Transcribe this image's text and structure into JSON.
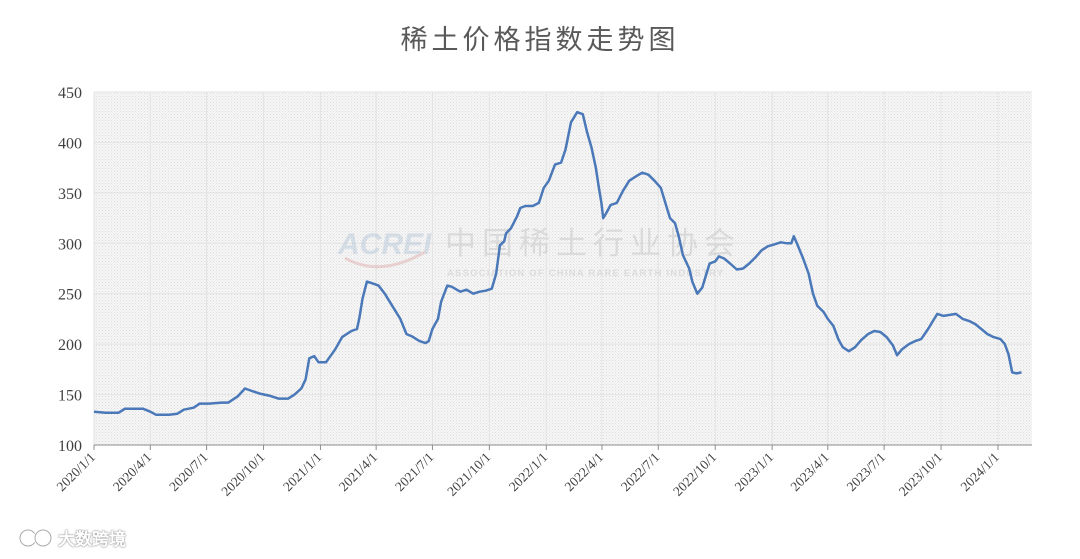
{
  "chart_data": {
    "type": "line",
    "title": "稀土价格指数走势图",
    "ylim": [
      100,
      450
    ],
    "yticks": [
      100,
      150,
      200,
      250,
      300,
      350,
      400,
      450
    ],
    "xlim": [
      "2020-01-01",
      "2024-02-25"
    ],
    "xticks": [
      {
        "date": "2020-01-01",
        "label": "2020/1/1"
      },
      {
        "date": "2020-04-01",
        "label": "2020/4/1"
      },
      {
        "date": "2020-07-01",
        "label": "2020/7/1"
      },
      {
        "date": "2020-10-01",
        "label": "2020/10/1"
      },
      {
        "date": "2021-01-01",
        "label": "2021/1/1"
      },
      {
        "date": "2021-04-01",
        "label": "2021/4/1"
      },
      {
        "date": "2021-07-01",
        "label": "2021/7/1"
      },
      {
        "date": "2021-10-01",
        "label": "2021/10/1"
      },
      {
        "date": "2022-01-01",
        "label": "2022/1/1"
      },
      {
        "date": "2022-04-01",
        "label": "2022/4/1"
      },
      {
        "date": "2022-07-01",
        "label": "2022/7/1"
      },
      {
        "date": "2022-10-01",
        "label": "2022/10/1"
      },
      {
        "date": "2023-01-01",
        "label": "2023/1/1"
      },
      {
        "date": "2023-04-01",
        "label": "2023/4/1"
      },
      {
        "date": "2023-07-01",
        "label": "2023/7/1"
      },
      {
        "date": "2023-10-01",
        "label": "2023/10/1"
      },
      {
        "date": "2024-01-01",
        "label": "2024/1/1"
      }
    ],
    "grid": true,
    "line_color": "#4a78b8",
    "series": [
      {
        "points": [
          [
            "2020-01-01",
            133
          ],
          [
            "2020-01-20",
            132
          ],
          [
            "2020-02-10",
            132
          ],
          [
            "2020-02-20",
            136
          ],
          [
            "2020-03-05",
            136
          ],
          [
            "2020-03-20",
            136
          ],
          [
            "2020-04-01",
            133
          ],
          [
            "2020-04-10",
            130
          ],
          [
            "2020-05-01",
            130
          ],
          [
            "2020-05-15",
            131
          ],
          [
            "2020-05-25",
            135
          ],
          [
            "2020-06-10",
            137
          ],
          [
            "2020-06-20",
            141
          ],
          [
            "2020-07-05",
            141
          ],
          [
            "2020-07-25",
            142
          ],
          [
            "2020-08-05",
            142
          ],
          [
            "2020-08-20",
            148
          ],
          [
            "2020-09-01",
            156
          ],
          [
            "2020-09-10",
            154
          ],
          [
            "2020-09-25",
            151
          ],
          [
            "2020-10-10",
            149
          ],
          [
            "2020-10-25",
            146
          ],
          [
            "2020-11-10",
            146
          ],
          [
            "2020-11-20",
            150
          ],
          [
            "2020-12-01",
            156
          ],
          [
            "2020-12-08",
            165
          ],
          [
            "2020-12-14",
            186
          ],
          [
            "2020-12-22",
            188
          ],
          [
            "2020-12-29",
            182
          ],
          [
            "2021-01-10",
            182
          ],
          [
            "2021-01-25",
            195
          ],
          [
            "2021-02-05",
            207
          ],
          [
            "2021-02-20",
            213
          ],
          [
            "2021-03-01",
            215
          ],
          [
            "2021-03-05",
            226
          ],
          [
            "2021-03-10",
            245
          ],
          [
            "2021-03-17",
            262
          ],
          [
            "2021-03-27",
            260
          ],
          [
            "2021-04-05",
            258
          ],
          [
            "2021-04-15",
            250
          ],
          [
            "2021-04-25",
            240
          ],
          [
            "2021-05-10",
            225
          ],
          [
            "2021-05-20",
            210
          ],
          [
            "2021-05-28",
            208
          ],
          [
            "2021-06-10",
            203
          ],
          [
            "2021-06-20",
            201
          ],
          [
            "2021-06-25",
            203
          ],
          [
            "2021-07-01",
            215
          ],
          [
            "2021-07-10",
            225
          ],
          [
            "2021-07-15",
            242
          ],
          [
            "2021-07-25",
            258
          ],
          [
            "2021-08-01",
            257
          ],
          [
            "2021-08-15",
            252
          ],
          [
            "2021-08-25",
            254
          ],
          [
            "2021-09-05",
            250
          ],
          [
            "2021-09-15",
            252
          ],
          [
            "2021-09-25",
            253
          ],
          [
            "2021-10-05",
            255
          ],
          [
            "2021-10-12",
            270
          ],
          [
            "2021-10-18",
            298
          ],
          [
            "2021-10-25",
            302
          ],
          [
            "2021-10-28",
            310
          ],
          [
            "2021-11-05",
            315
          ],
          [
            "2021-11-15",
            327
          ],
          [
            "2021-11-20",
            335
          ],
          [
            "2021-11-28",
            337
          ],
          [
            "2021-12-10",
            337
          ],
          [
            "2021-12-20",
            340
          ],
          [
            "2021-12-28",
            355
          ],
          [
            "2022-01-05",
            362
          ],
          [
            "2022-01-15",
            378
          ],
          [
            "2022-01-25",
            380
          ],
          [
            "2022-02-01",
            393
          ],
          [
            "2022-02-10",
            420
          ],
          [
            "2022-02-20",
            430
          ],
          [
            "2022-03-01",
            428
          ],
          [
            "2022-03-08",
            410
          ],
          [
            "2022-03-15",
            395
          ],
          [
            "2022-03-22",
            375
          ],
          [
            "2022-03-27",
            355
          ],
          [
            "2022-03-31",
            340
          ],
          [
            "2022-04-03",
            325
          ],
          [
            "2022-04-08",
            330
          ],
          [
            "2022-04-15",
            338
          ],
          [
            "2022-04-25",
            340
          ],
          [
            "2022-05-05",
            352
          ],
          [
            "2022-05-15",
            362
          ],
          [
            "2022-05-25",
            366
          ],
          [
            "2022-06-05",
            370
          ],
          [
            "2022-06-15",
            368
          ],
          [
            "2022-06-25",
            362
          ],
          [
            "2022-07-05",
            355
          ],
          [
            "2022-07-15",
            335
          ],
          [
            "2022-07-20",
            325
          ],
          [
            "2022-07-28",
            320
          ],
          [
            "2022-08-03",
            307
          ],
          [
            "2022-08-10",
            288
          ],
          [
            "2022-08-20",
            275
          ],
          [
            "2022-08-25",
            262
          ],
          [
            "2022-09-02",
            250
          ],
          [
            "2022-09-10",
            256
          ],
          [
            "2022-09-16",
            268
          ],
          [
            "2022-09-22",
            280
          ],
          [
            "2022-10-01",
            282
          ],
          [
            "2022-10-07",
            287
          ],
          [
            "2022-10-15",
            285
          ],
          [
            "2022-10-25",
            280
          ],
          [
            "2022-11-05",
            274
          ],
          [
            "2022-11-15",
            275
          ],
          [
            "2022-11-25",
            280
          ],
          [
            "2022-12-05",
            286
          ],
          [
            "2022-12-15",
            293
          ],
          [
            "2022-12-25",
            297
          ],
          [
            "2023-01-05",
            299
          ],
          [
            "2023-01-15",
            301
          ],
          [
            "2023-01-25",
            300
          ],
          [
            "2023-02-01",
            300
          ],
          [
            "2023-02-05",
            307
          ],
          [
            "2023-02-10",
            300
          ],
          [
            "2023-02-20",
            285
          ],
          [
            "2023-03-01",
            270
          ],
          [
            "2023-03-08",
            250
          ],
          [
            "2023-03-15",
            238
          ],
          [
            "2023-03-25",
            232
          ],
          [
            "2023-04-01",
            225
          ],
          [
            "2023-04-10",
            218
          ],
          [
            "2023-04-18",
            205
          ],
          [
            "2023-04-25",
            197
          ],
          [
            "2023-05-05",
            193
          ],
          [
            "2023-05-15",
            197
          ],
          [
            "2023-05-25",
            204
          ],
          [
            "2023-06-05",
            210
          ],
          [
            "2023-06-15",
            213
          ],
          [
            "2023-06-25",
            212
          ],
          [
            "2023-07-05",
            207
          ],
          [
            "2023-07-15",
            199
          ],
          [
            "2023-07-22",
            189
          ],
          [
            "2023-07-30",
            195
          ],
          [
            "2023-08-10",
            200
          ],
          [
            "2023-08-20",
            203
          ],
          [
            "2023-08-30",
            205
          ],
          [
            "2023-09-10",
            215
          ],
          [
            "2023-09-20",
            225
          ],
          [
            "2023-09-25",
            230
          ],
          [
            "2023-10-05",
            228
          ],
          [
            "2023-10-15",
            229
          ],
          [
            "2023-10-25",
            230
          ],
          [
            "2023-11-05",
            225
          ],
          [
            "2023-11-15",
            223
          ],
          [
            "2023-11-25",
            220
          ],
          [
            "2023-12-05",
            215
          ],
          [
            "2023-12-15",
            210
          ],
          [
            "2023-12-25",
            207
          ],
          [
            "2024-01-05",
            205
          ],
          [
            "2024-01-12",
            200
          ],
          [
            "2024-01-18",
            190
          ],
          [
            "2024-01-24",
            172
          ],
          [
            "2024-01-31",
            171
          ],
          [
            "2024-02-08",
            172
          ]
        ]
      }
    ]
  },
  "watermark": {
    "logo": "ACREI",
    "name_cn": "中国稀土行业协会",
    "name_en": "ASSOCIATION OF CHINA RARE EARTH INDUSTRY"
  },
  "brand": {
    "text": "大数跨境"
  }
}
